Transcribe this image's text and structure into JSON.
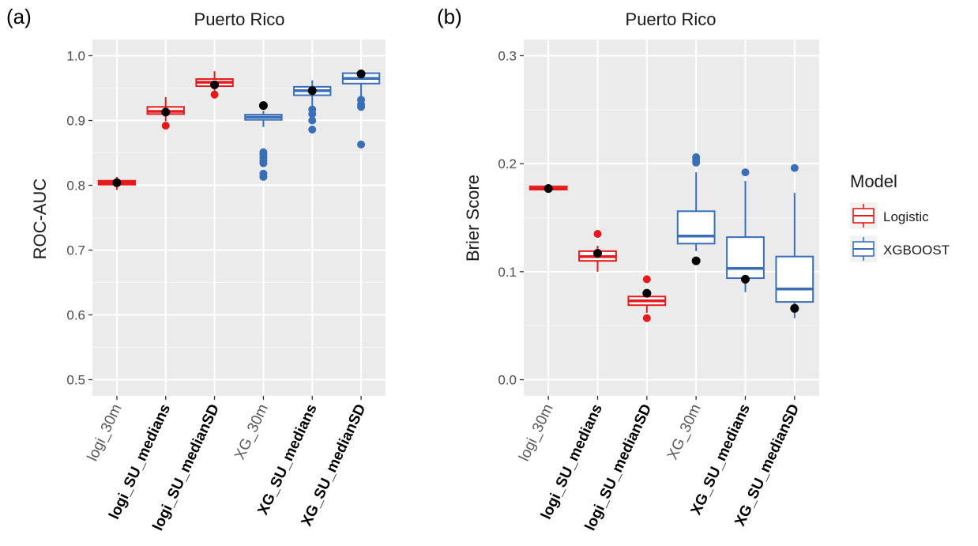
{
  "legend": {
    "title": "Model",
    "items": [
      {
        "label": "Logistic",
        "color": "#e41a1c"
      },
      {
        "label": "XGBOOST",
        "color": "#3a6fb5"
      }
    ]
  },
  "chart_data": [
    {
      "type": "box",
      "panel_label": "(a)",
      "title": "Puerto Rico",
      "ylabel": "ROC-AUC",
      "ylim": [
        0.475,
        1.025
      ],
      "yticks": [
        0.5,
        0.6,
        0.7,
        0.8,
        0.9,
        1.0
      ],
      "ytick_labels": [
        "0.5",
        "0.6",
        "0.7",
        "0.8",
        "0.9",
        "1.0"
      ],
      "categories": [
        "logi_30m",
        "logi_SU_medians",
        "logi_SU_medianSD",
        "XG_30m",
        "XG_SU_medians",
        "XG_SU_medianSD"
      ],
      "category_bold": [
        false,
        true,
        true,
        false,
        true,
        true
      ],
      "model": [
        "Logistic",
        "Logistic",
        "Logistic",
        "XGBOOST",
        "XGBOOST",
        "XGBOOST"
      ],
      "boxes": [
        {
          "q1": 0.801,
          "median": 0.804,
          "q3": 0.807,
          "whisker_low": 0.793,
          "whisker_high": 0.813,
          "outliers": [],
          "point": 0.804
        },
        {
          "q1": 0.91,
          "median": 0.914,
          "q3": 0.921,
          "whisker_low": 0.899,
          "whisker_high": 0.936,
          "outliers": [
            0.892
          ],
          "point": 0.913
        },
        {
          "q1": 0.953,
          "median": 0.959,
          "q3": 0.964,
          "whisker_low": 0.945,
          "whisker_high": 0.976,
          "outliers": [
            0.94
          ],
          "point": 0.955
        },
        {
          "q1": 0.901,
          "median": 0.905,
          "q3": 0.909,
          "whisker_low": 0.89,
          "whisker_high": 0.915,
          "outliers": [
            0.851,
            0.848,
            0.843,
            0.838,
            0.834,
            0.818,
            0.813
          ],
          "point": 0.923
        },
        {
          "q1": 0.939,
          "median": 0.946,
          "q3": 0.952,
          "whisker_low": 0.923,
          "whisker_high": 0.962,
          "outliers": [
            0.917,
            0.91,
            0.9,
            0.886
          ],
          "point": 0.946
        },
        {
          "q1": 0.957,
          "median": 0.965,
          "q3": 0.973,
          "whisker_low": 0.936,
          "whisker_high": 0.976,
          "outliers": [
            0.932,
            0.925,
            0.921,
            0.863
          ],
          "point": 0.972
        }
      ]
    },
    {
      "type": "box",
      "panel_label": "(b)",
      "title": "Puerto Rico",
      "ylabel": "Brier Score",
      "ylim": [
        -0.015,
        0.315
      ],
      "yticks": [
        0.0,
        0.1,
        0.2,
        0.3
      ],
      "ytick_labels": [
        "0.0",
        "0.1",
        "0.2",
        "0.3"
      ],
      "categories": [
        "logi_30m",
        "logi_SU_medians",
        "logi_SU_medianSD",
        "XG_30m",
        "XG_SU_medians",
        "XG_SU_medianSD"
      ],
      "category_bold": [
        false,
        true,
        true,
        false,
        true,
        true
      ],
      "model": [
        "Logistic",
        "Logistic",
        "Logistic",
        "XGBOOST",
        "XGBOOST",
        "XGBOOST"
      ],
      "boxes": [
        {
          "q1": 0.176,
          "median": 0.177,
          "q3": 0.179,
          "whisker_low": 0.174,
          "whisker_high": 0.181,
          "outliers": [],
          "point": 0.177
        },
        {
          "q1": 0.11,
          "median": 0.114,
          "q3": 0.119,
          "whisker_low": 0.1,
          "whisker_high": 0.124,
          "outliers": [
            0.135
          ],
          "point": 0.117
        },
        {
          "q1": 0.069,
          "median": 0.073,
          "q3": 0.077,
          "whisker_low": 0.062,
          "whisker_high": 0.082,
          "outliers": [
            0.093,
            0.057
          ],
          "point": 0.08
        },
        {
          "q1": 0.126,
          "median": 0.133,
          "q3": 0.156,
          "whisker_low": 0.119,
          "whisker_high": 0.192,
          "outliers": [
            0.206,
            0.204,
            0.201
          ],
          "point": 0.11
        },
        {
          "q1": 0.094,
          "median": 0.103,
          "q3": 0.132,
          "whisker_low": 0.081,
          "whisker_high": 0.184,
          "outliers": [
            0.192
          ],
          "point": 0.093
        },
        {
          "q1": 0.072,
          "median": 0.084,
          "q3": 0.114,
          "whisker_low": 0.057,
          "whisker_high": 0.173,
          "outliers": [
            0.196
          ],
          "point": 0.066
        }
      ]
    }
  ]
}
